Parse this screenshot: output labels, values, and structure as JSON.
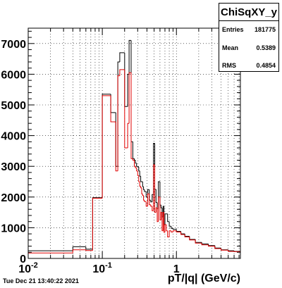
{
  "chart_data": {
    "type": "histogram",
    "xlabel": "pT/|q| (GeV/c)",
    "ylabel": "",
    "x_scale": "log",
    "xlim": [
      0.01,
      7.3
    ],
    "ylim": [
      0,
      7500
    ],
    "x_ticks": [
      {
        "value": 0.01,
        "label": "10",
        "exp": "-2"
      },
      {
        "value": 0.1,
        "label": "10",
        "exp": "-1"
      },
      {
        "value": 1,
        "label": "1",
        "exp": ""
      }
    ],
    "y_ticks": [
      {
        "value": 0,
        "label": "0"
      },
      {
        "value": 1000,
        "label": "1000"
      },
      {
        "value": 2000,
        "label": "2000"
      },
      {
        "value": 3000,
        "label": "3000"
      },
      {
        "value": 4000,
        "label": "4000"
      },
      {
        "value": 5000,
        "label": "5000"
      },
      {
        "value": 6000,
        "label": "6000"
      },
      {
        "value": 7000,
        "label": "7000"
      }
    ],
    "grid": true,
    "series": [
      {
        "color": "#000000",
        "edges": [
          0.01,
          0.04,
          0.06,
          0.074,
          0.1,
          0.13,
          0.152,
          0.162,
          0.172,
          0.2,
          0.22,
          0.23,
          0.245,
          0.258,
          0.27,
          0.28,
          0.29,
          0.3,
          0.31,
          0.32,
          0.33,
          0.34,
          0.35,
          0.36,
          0.37,
          0.39,
          0.41,
          0.43,
          0.45,
          0.47,
          0.49,
          0.51,
          0.53,
          0.55,
          0.57,
          0.6,
          0.62,
          0.64,
          0.66,
          0.68,
          0.7,
          0.73,
          0.76,
          0.8,
          0.85,
          0.9,
          1.0,
          1.15,
          1.3,
          1.5,
          1.8,
          2.2,
          2.7,
          3.3,
          4.0,
          5.0,
          6.0,
          7.3
        ],
        "values": [
          250,
          380,
          300,
          1980,
          5350,
          4750,
          3000,
          6400,
          6700,
          4950,
          6000,
          7100,
          3800,
          3250,
          3200,
          3100,
          3000,
          2980,
          2850,
          2680,
          2500,
          2500,
          2340,
          2240,
          2180,
          2000,
          2240,
          1900,
          1840,
          2080,
          3750,
          2250,
          1820,
          1620,
          2500,
          1740,
          1650,
          1350,
          1700,
          1100,
          1450,
          1450,
          1200,
          1050,
          980,
          950,
          880,
          800,
          720,
          620,
          520,
          470,
          420,
          340,
          280,
          250,
          230
        ]
      },
      {
        "color": "#e00000",
        "edges": [
          0.01,
          0.04,
          0.06,
          0.074,
          0.1,
          0.13,
          0.152,
          0.162,
          0.172,
          0.2,
          0.22,
          0.23,
          0.245,
          0.258,
          0.27,
          0.28,
          0.29,
          0.3,
          0.31,
          0.32,
          0.33,
          0.34,
          0.35,
          0.36,
          0.37,
          0.39,
          0.41,
          0.43,
          0.45,
          0.47,
          0.49,
          0.51,
          0.53,
          0.55,
          0.57,
          0.6,
          0.62,
          0.64,
          0.66,
          0.68,
          0.7,
          0.73,
          0.76,
          0.8,
          0.85,
          0.9,
          1.0,
          1.15,
          1.3,
          1.5,
          1.8,
          2.2,
          2.7,
          3.3,
          4.0,
          5.0,
          6.0,
          7.3
        ],
        "values": [
          180,
          280,
          260,
          1960,
          5300,
          4450,
          2850,
          5950,
          6150,
          3600,
          4400,
          6050,
          3250,
          3200,
          3000,
          2950,
          2850,
          2700,
          2500,
          2350,
          2300,
          2100,
          2050,
          1900,
          1850,
          1700,
          2100,
          1750,
          1700,
          1550,
          3050,
          1500,
          1650,
          1200,
          2000,
          1250,
          1500,
          900,
          1500,
          850,
          1100,
          900,
          700,
          900,
          860,
          900,
          860,
          780,
          700,
          600,
          500,
          440,
          400,
          320,
          270,
          230,
          220
        ]
      }
    ]
  },
  "stats_box": {
    "title": "ChiSqXY_y",
    "rows": [
      {
        "label": "Entries",
        "value": "181775"
      },
      {
        "label": "Mean",
        "value": "0.5389"
      },
      {
        "label": "RMS",
        "value": "0.4854"
      }
    ]
  },
  "timestamp": "Tue Dec 21 13:40:22 2021"
}
